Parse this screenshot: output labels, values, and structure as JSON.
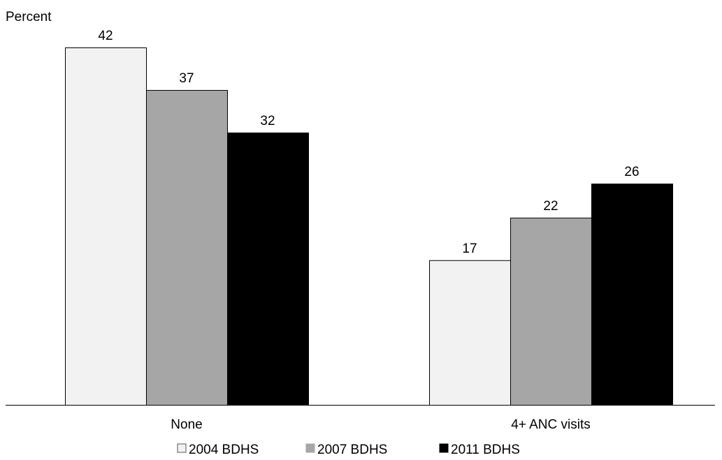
{
  "chart_data": {
    "type": "bar",
    "title": "",
    "xlabel": "",
    "ylabel": "Percent",
    "categories": [
      "None",
      "4+ ANC visits"
    ],
    "series": [
      {
        "name": "2004 BDHS",
        "values": [
          42,
          17
        ],
        "color": "#f2f2f2",
        "marker": "□"
      },
      {
        "name": "2007 BDHS",
        "values": [
          37,
          22
        ],
        "color": "#a6a6a6",
        "marker": "■"
      },
      {
        "name": "2011 BDHS",
        "values": [
          32,
          26
        ],
        "color": "#000000",
        "marker": "■"
      }
    ],
    "ylim": [
      0,
      42
    ],
    "grid": false,
    "legend_position": "bottom"
  }
}
